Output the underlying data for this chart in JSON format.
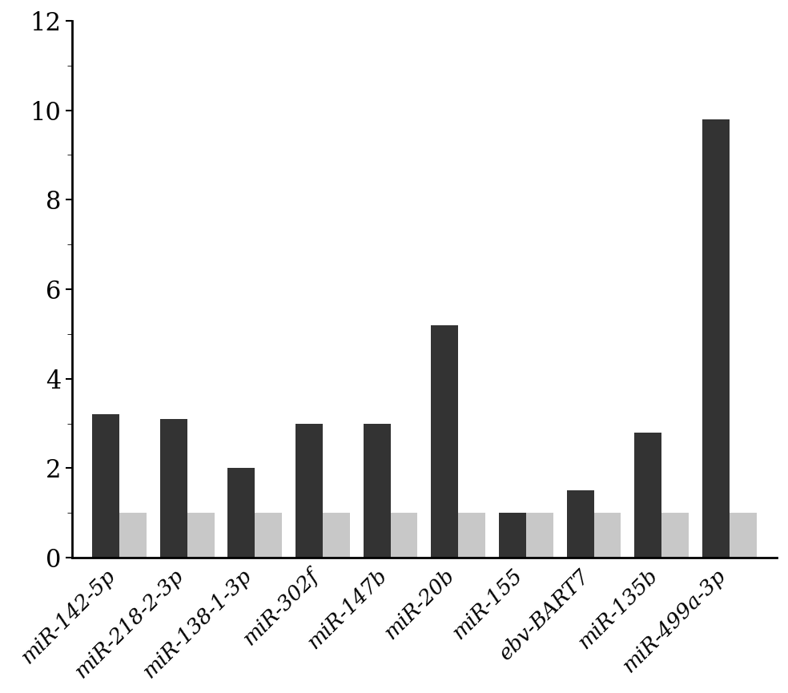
{
  "categories": [
    "miR-142-5p",
    "miR-218-2-3p",
    "miR-138-1-3p",
    "miR-302f",
    "miR-147b",
    "miR-20b",
    "miR-155",
    "ebv-BART7",
    "miR-135b",
    "miR-499a-3p"
  ],
  "dark_values": [
    3.2,
    3.1,
    2.0,
    3.0,
    3.0,
    5.2,
    1.0,
    1.5,
    2.8,
    9.8
  ],
  "light_values": [
    1.0,
    1.0,
    1.0,
    1.0,
    1.0,
    1.0,
    1.0,
    1.0,
    1.0,
    1.0
  ],
  "dark_color": "#333333",
  "light_color": "#c8c8c8",
  "ylim": [
    0,
    12
  ],
  "yticks_major": [
    0,
    2,
    4,
    6,
    8,
    10,
    12
  ],
  "yticks_minor": [
    1,
    3,
    5,
    7,
    9,
    11
  ],
  "bar_width": 0.4,
  "background_color": "#ffffff",
  "tick_fontsize": 22,
  "label_fontsize": 19,
  "spine_linewidth": 2.0
}
